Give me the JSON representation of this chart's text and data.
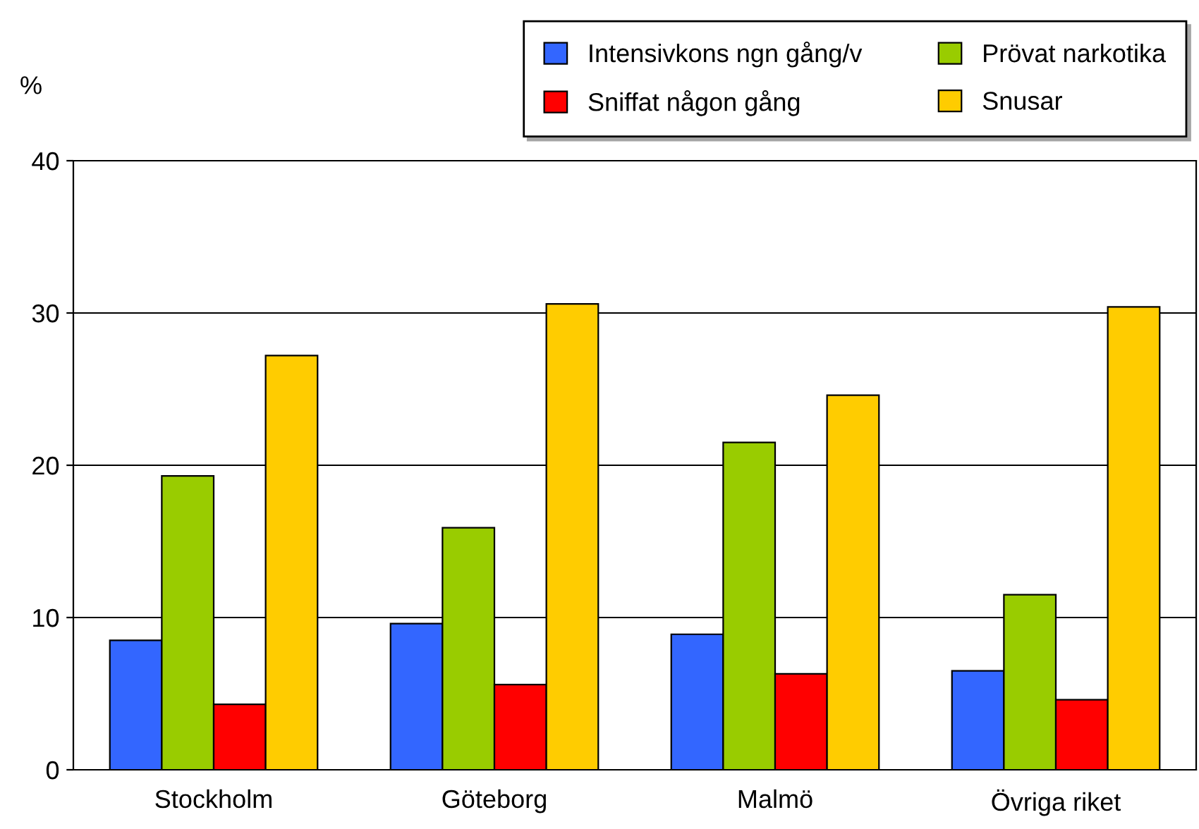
{
  "chart_data": {
    "type": "bar",
    "ylabel": "%",
    "categories": [
      "Stockholm",
      "Göteborg",
      "Malmö",
      "Övriga riket"
    ],
    "series": [
      {
        "name": "Intensivkons ngn gång/v",
        "color": "#3366ff",
        "values": [
          8.5,
          9.6,
          8.9,
          6.5
        ]
      },
      {
        "name": "Prövat narkotika",
        "color": "#99cc00",
        "values": [
          19.3,
          15.9,
          21.5,
          11.5
        ]
      },
      {
        "name": "Sniffat någon gång",
        "color": "#ff0000",
        "values": [
          4.3,
          5.6,
          6.3,
          4.6
        ]
      },
      {
        "name": "Snusar",
        "color": "#ffcc00",
        "values": [
          27.2,
          30.6,
          24.6,
          30.4
        ]
      }
    ],
    "ylim": [
      0,
      40
    ],
    "yticks": [
      0,
      10,
      20,
      30,
      40
    ],
    "grid": "y",
    "legend": "top right"
  }
}
